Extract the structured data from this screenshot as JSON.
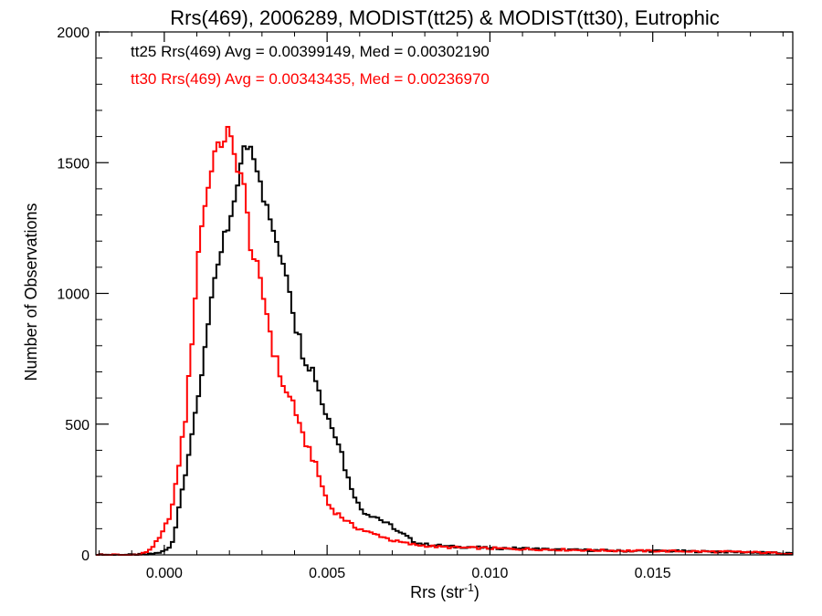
{
  "chart_data": {
    "type": "line",
    "title": "Rrs(469), 2006289, MODIST(tt25) & MODIST(tt30), Eutrophic",
    "xlabel_base": "Rrs (str",
    "xlabel_sup": "-1",
    "xlabel_close": ")",
    "ylabel": "Number of Observations",
    "xlim": [
      -0.0021,
      0.0193
    ],
    "ylim": [
      0,
      2000
    ],
    "x_ticks": [
      0.0,
      0.005,
      0.01,
      0.015
    ],
    "x_tick_labels": [
      "0.000",
      "0.005",
      "0.010",
      "0.015"
    ],
    "y_ticks": [
      0,
      500,
      1000,
      1500,
      2000
    ],
    "y_tick_labels": [
      "0",
      "500",
      "1000",
      "1500",
      "2000"
    ],
    "grid": false,
    "annotations": [
      {
        "text": "tt25 Rrs(469) Avg = 0.00399149, Med = 0.00302190",
        "color": "#000000"
      },
      {
        "text": "tt30 Rrs(469) Avg = 0.00343435, Med = 0.00236970",
        "color": "#ff0000"
      }
    ],
    "bin_width": 0.0001,
    "series": [
      {
        "color": "#000000",
        "points": [
          [
            -0.0021,
            0
          ],
          [
            -0.001,
            0
          ],
          [
            -0.0005,
            2
          ],
          [
            -0.0003,
            5
          ],
          [
            -0.0001,
            10
          ],
          [
            0.0,
            15
          ],
          [
            0.0002,
            30
          ],
          [
            0.0003,
            70
          ],
          [
            0.0004,
            150
          ],
          [
            0.0005,
            220
          ],
          [
            0.0006,
            280
          ],
          [
            0.0007,
            360
          ],
          [
            0.0008,
            430
          ],
          [
            0.0009,
            500
          ],
          [
            0.001,
            540
          ],
          [
            0.0011,
            650
          ],
          [
            0.0012,
            750
          ],
          [
            0.0013,
            850
          ],
          [
            0.0014,
            950
          ],
          [
            0.0015,
            1010
          ],
          [
            0.0016,
            1050
          ],
          [
            0.0017,
            1120
          ],
          [
            0.0018,
            1200
          ],
          [
            0.0019,
            1240
          ],
          [
            0.002,
            1230
          ],
          [
            0.0021,
            1310
          ],
          [
            0.0022,
            1400
          ],
          [
            0.0023,
            1460
          ],
          [
            0.0024,
            1510
          ],
          [
            0.0025,
            1580
          ],
          [
            0.0026,
            1550
          ],
          [
            0.0027,
            1570
          ],
          [
            0.0028,
            1500
          ],
          [
            0.0029,
            1480
          ],
          [
            0.003,
            1400
          ],
          [
            0.0031,
            1350
          ],
          [
            0.0032,
            1290
          ],
          [
            0.0033,
            1270
          ],
          [
            0.0034,
            1220
          ],
          [
            0.0035,
            1130
          ],
          [
            0.0036,
            1160
          ],
          [
            0.0037,
            1100
          ],
          [
            0.0038,
            1060
          ],
          [
            0.0039,
            990
          ],
          [
            0.004,
            900
          ],
          [
            0.0041,
            850
          ],
          [
            0.0042,
            800
          ],
          [
            0.0043,
            760
          ],
          [
            0.0044,
            740
          ],
          [
            0.0045,
            720
          ],
          [
            0.0046,
            700
          ],
          [
            0.0047,
            660
          ],
          [
            0.0048,
            610
          ],
          [
            0.0049,
            560
          ],
          [
            0.005,
            530
          ],
          [
            0.0051,
            510
          ],
          [
            0.0052,
            490
          ],
          [
            0.0053,
            450
          ],
          [
            0.0054,
            420
          ],
          [
            0.0055,
            360
          ],
          [
            0.0056,
            310
          ],
          [
            0.0057,
            270
          ],
          [
            0.0058,
            250
          ],
          [
            0.0059,
            210
          ],
          [
            0.006,
            180
          ],
          [
            0.0062,
            160
          ],
          [
            0.0064,
            150
          ],
          [
            0.0066,
            140
          ],
          [
            0.0068,
            120
          ],
          [
            0.007,
            110
          ],
          [
            0.0072,
            85
          ],
          [
            0.0074,
            75
          ],
          [
            0.0076,
            55
          ],
          [
            0.0078,
            45
          ],
          [
            0.008,
            40
          ],
          [
            0.0085,
            35
          ],
          [
            0.009,
            30
          ],
          [
            0.0095,
            30
          ],
          [
            0.01,
            25
          ],
          [
            0.011,
            25
          ],
          [
            0.012,
            20
          ],
          [
            0.013,
            18
          ],
          [
            0.014,
            15
          ],
          [
            0.015,
            15
          ],
          [
            0.016,
            14
          ],
          [
            0.017,
            12
          ],
          [
            0.018,
            10
          ],
          [
            0.0193,
            5
          ]
        ]
      },
      {
        "color": "#ff0000",
        "points": [
          [
            -0.0021,
            0
          ],
          [
            -0.0008,
            0
          ],
          [
            -0.0007,
            3
          ],
          [
            -0.0006,
            8
          ],
          [
            -0.0005,
            15
          ],
          [
            -0.0004,
            25
          ],
          [
            -0.0003,
            40
          ],
          [
            -0.0002,
            55
          ],
          [
            -0.0001,
            70
          ],
          [
            0.0,
            100
          ],
          [
            0.0001,
            130
          ],
          [
            0.0002,
            160
          ],
          [
            0.0003,
            220
          ],
          [
            0.0004,
            300
          ],
          [
            0.0005,
            400
          ],
          [
            0.0006,
            480
          ],
          [
            0.0007,
            570
          ],
          [
            0.0008,
            750
          ],
          [
            0.0009,
            900
          ],
          [
            0.001,
            1080
          ],
          [
            0.0011,
            1230
          ],
          [
            0.0012,
            1300
          ],
          [
            0.0013,
            1380
          ],
          [
            0.0014,
            1420
          ],
          [
            0.0015,
            1560
          ],
          [
            0.0016,
            1510
          ],
          [
            0.0017,
            1590
          ],
          [
            0.0018,
            1560
          ],
          [
            0.0019,
            1630
          ],
          [
            0.002,
            1610
          ],
          [
            0.0021,
            1550
          ],
          [
            0.0022,
            1500
          ],
          [
            0.0023,
            1480
          ],
          [
            0.0024,
            1440
          ],
          [
            0.0025,
            1360
          ],
          [
            0.0026,
            1230
          ],
          [
            0.0027,
            1150
          ],
          [
            0.0028,
            1120
          ],
          [
            0.0029,
            1070
          ],
          [
            0.003,
            1000
          ],
          [
            0.0031,
            960
          ],
          [
            0.0032,
            900
          ],
          [
            0.0033,
            810
          ],
          [
            0.0034,
            760
          ],
          [
            0.0035,
            710
          ],
          [
            0.0036,
            680
          ],
          [
            0.0037,
            630
          ],
          [
            0.0038,
            600
          ],
          [
            0.0039,
            600
          ],
          [
            0.004,
            580
          ],
          [
            0.0041,
            510
          ],
          [
            0.0042,
            460
          ],
          [
            0.0043,
            440
          ],
          [
            0.0044,
            420
          ],
          [
            0.0045,
            390
          ],
          [
            0.0046,
            360
          ],
          [
            0.0047,
            320
          ],
          [
            0.0048,
            280
          ],
          [
            0.0049,
            250
          ],
          [
            0.005,
            200
          ],
          [
            0.0052,
            170
          ],
          [
            0.0054,
            150
          ],
          [
            0.0056,
            130
          ],
          [
            0.0058,
            110
          ],
          [
            0.006,
            100
          ],
          [
            0.0062,
            90
          ],
          [
            0.0064,
            80
          ],
          [
            0.0066,
            75
          ],
          [
            0.0068,
            65
          ],
          [
            0.007,
            55
          ],
          [
            0.0072,
            50
          ],
          [
            0.0074,
            45
          ],
          [
            0.0076,
            40
          ],
          [
            0.008,
            35
          ],
          [
            0.0085,
            30
          ],
          [
            0.009,
            28
          ],
          [
            0.01,
            25
          ],
          [
            0.011,
            22
          ],
          [
            0.012,
            20
          ],
          [
            0.013,
            18
          ],
          [
            0.014,
            16
          ],
          [
            0.015,
            15
          ],
          [
            0.016,
            14
          ],
          [
            0.017,
            12
          ],
          [
            0.018,
            10
          ],
          [
            0.0193,
            5
          ]
        ]
      }
    ]
  }
}
